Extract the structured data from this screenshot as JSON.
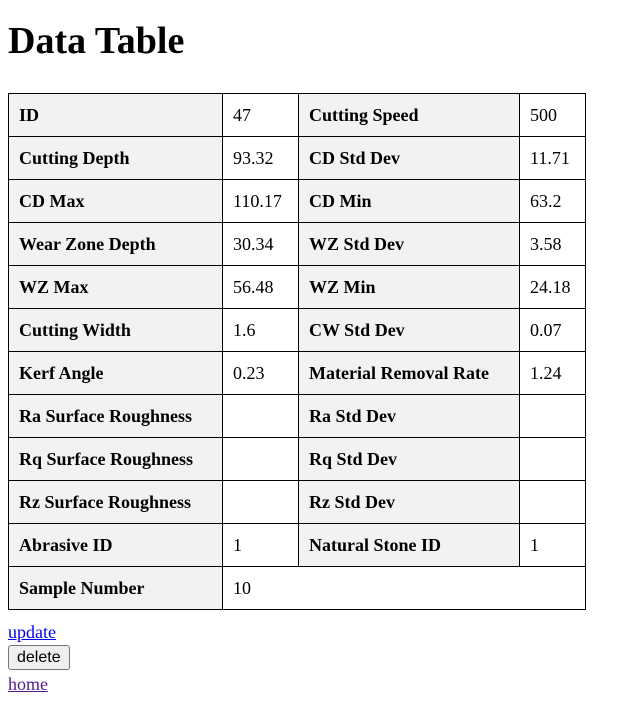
{
  "page": {
    "title": "Data Table"
  },
  "table": {
    "rows": [
      [
        {
          "label": "ID",
          "value": "47"
        },
        {
          "label": "Cutting Speed",
          "value": "500"
        }
      ],
      [
        {
          "label": "Cutting Depth",
          "value": "93.32"
        },
        {
          "label": "CD Std Dev",
          "value": "11.71"
        }
      ],
      [
        {
          "label": "CD Max",
          "value": "110.17"
        },
        {
          "label": "CD Min",
          "value": "63.2"
        }
      ],
      [
        {
          "label": "Wear Zone Depth",
          "value": "30.34"
        },
        {
          "label": "WZ Std Dev",
          "value": "3.58"
        }
      ],
      [
        {
          "label": "WZ Max",
          "value": "56.48"
        },
        {
          "label": "WZ Min",
          "value": "24.18"
        }
      ],
      [
        {
          "label": "Cutting Width",
          "value": "1.6"
        },
        {
          "label": "CW Std Dev",
          "value": "0.07"
        }
      ],
      [
        {
          "label": "Kerf Angle",
          "value": "0.23"
        },
        {
          "label": "Material Removal Rate",
          "value": "1.24"
        }
      ],
      [
        {
          "label": "Ra Surface Roughness",
          "value": ""
        },
        {
          "label": "Ra Std Dev",
          "value": ""
        }
      ],
      [
        {
          "label": "Rq Surface Roughness",
          "value": ""
        },
        {
          "label": "Rq Std Dev",
          "value": ""
        }
      ],
      [
        {
          "label": "Rz Surface Roughness",
          "value": ""
        },
        {
          "label": "Rz Std Dev",
          "value": ""
        }
      ],
      [
        {
          "label": "Abrasive ID",
          "value": "1"
        },
        {
          "label": "Natural Stone ID",
          "value": "1"
        }
      ]
    ],
    "last_row": {
      "label": "Sample Number",
      "value": "10"
    }
  },
  "actions": {
    "update_label": "update",
    "delete_label": "delete",
    "home_label": "home"
  }
}
